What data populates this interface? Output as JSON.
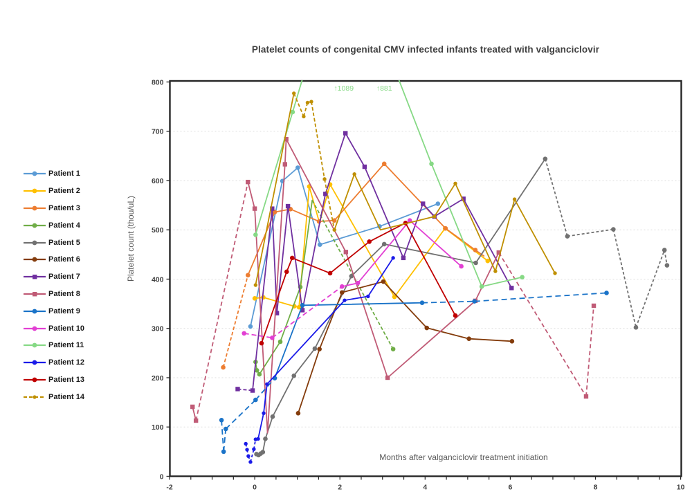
{
  "title": "Platelet counts of congenital CMV infected infants treated with valganciclovir",
  "x_axis": {
    "label": "Months after valganciclovir treatment initiation",
    "tick_labels": [
      -2,
      0,
      2,
      4,
      6,
      8,
      10
    ],
    "minor_tick_step": 0.5,
    "range": [
      -2,
      10
    ]
  },
  "y_axis": {
    "label": "Platelet count (thou/uL)",
    "tick_labels": [
      0,
      100,
      200,
      300,
      400,
      500,
      600,
      700,
      800
    ],
    "range": [
      0,
      800
    ]
  },
  "annotations": [
    {
      "text": "↑1089",
      "month": 2.09,
      "value_offscale": 1089,
      "color": "#86d985"
    },
    {
      "text": "↑881",
      "month": 3.04,
      "value_offscale": 881,
      "color": "#86d985"
    }
  ],
  "chart_data": {
    "type": "line",
    "x_unit": "months",
    "y_unit": "platelets thou/uL",
    "grid": "horizontal-dotted",
    "legend_position": "left-outside",
    "series": [
      {
        "name": "Patient 1",
        "color": "#5b9bd5",
        "marker": "circle",
        "dash": "5 3",
        "points": [
          {
            "m": -0.1,
            "v": 304
          },
          {
            "m": 0.65,
            "v": 599
          },
          {
            "m": 1.01,
            "v": 626
          },
          {
            "m": 1.53,
            "v": 470
          },
          {
            "m": 2.93,
            "v": 507
          },
          {
            "m": 4.3,
            "v": 553
          }
        ]
      },
      {
        "name": "Patient 2",
        "color": "#ffc000",
        "marker": "circle",
        "dash": "5 3",
        "points": [
          {
            "m": 0.0,
            "v": 361
          },
          {
            "m": 0.2,
            "v": 363
          },
          {
            "m": 0.93,
            "v": 345
          },
          {
            "m": 1.04,
            "v": 343
          },
          {
            "m": 1.28,
            "v": 588
          },
          {
            "m": 1.52,
            "v": 514,
            "mk": false
          },
          {
            "m": 1.77,
            "v": 592
          },
          {
            "m": 3.28,
            "v": 364
          },
          {
            "m": 4.47,
            "v": 503
          },
          {
            "m": 5.47,
            "v": 437
          }
        ]
      },
      {
        "name": "Patient 3",
        "color": "#ed7d31",
        "marker": "circle",
        "dash": "5 3",
        "points": [
          {
            "m": -0.74,
            "v": 221
          },
          {
            "m": -0.16,
            "v": 408,
            "d": true
          },
          {
            "m": 0.47,
            "v": 536
          },
          {
            "m": 0.84,
            "v": 542
          },
          {
            "m": 1.51,
            "v": 517
          },
          {
            "m": 1.87,
            "v": 519
          },
          {
            "m": 3.04,
            "v": 634
          },
          {
            "m": 4.48,
            "v": 503
          },
          {
            "m": 5.18,
            "v": 459
          },
          {
            "m": 5.38,
            "v": 447,
            "mk": false
          }
        ]
      },
      {
        "name": "Patient 4",
        "color": "#70ad47",
        "marker": "circle",
        "dash": "5 3",
        "points": [
          {
            "m": 0.02,
            "v": 232
          },
          {
            "m": 0.05,
            "v": 215
          },
          {
            "m": 0.11,
            "v": 207
          },
          {
            "m": 0.6,
            "v": 273
          },
          {
            "m": 1.07,
            "v": 384
          },
          {
            "m": 1.35,
            "v": 560,
            "mk": false
          },
          {
            "m": 3.25,
            "v": 258,
            "d": true
          }
        ]
      },
      {
        "name": "Patient 5",
        "color": "#717171",
        "marker": "circle",
        "dash": "4 3",
        "points": [
          {
            "m": 0.04,
            "v": 45
          },
          {
            "m": 0.09,
            "v": 43
          },
          {
            "m": 0.14,
            "v": 46
          },
          {
            "m": 0.19,
            "v": 49
          },
          {
            "m": 0.25,
            "v": 76
          },
          {
            "m": 0.42,
            "v": 121
          },
          {
            "m": 0.92,
            "v": 204
          },
          {
            "m": 1.41,
            "v": 259
          },
          {
            "m": 2.27,
            "v": 406
          },
          {
            "m": 3.04,
            "v": 471
          },
          {
            "m": 5.19,
            "v": 433
          },
          {
            "m": 6.82,
            "v": 644
          },
          {
            "m": 7.34,
            "v": 487,
            "d": true
          },
          {
            "m": 8.42,
            "v": 501,
            "d": true
          },
          {
            "m": 8.95,
            "v": 302,
            "d": true
          },
          {
            "m": 9.62,
            "v": 459,
            "d": true
          },
          {
            "m": 9.68,
            "v": 428,
            "d": true
          }
        ]
      },
      {
        "name": "Patient 6",
        "color": "#843c0c",
        "marker": "circle",
        "dash": "5 3",
        "points": [
          {
            "m": 1.02,
            "v": 128
          },
          {
            "m": 1.52,
            "v": 258
          },
          {
            "m": 2.05,
            "v": 373
          },
          {
            "m": 3.02,
            "v": 395
          },
          {
            "m": 4.04,
            "v": 301
          },
          {
            "m": 5.03,
            "v": 279
          },
          {
            "m": 6.04,
            "v": 274
          }
        ]
      },
      {
        "name": "Patient 7",
        "color": "#7030a0",
        "marker": "square",
        "dash": "5 3",
        "points": [
          {
            "m": -0.4,
            "v": 177
          },
          {
            "m": -0.05,
            "v": 174,
            "d": true
          },
          {
            "m": 0.41,
            "v": 543
          },
          {
            "m": 0.52,
            "v": 331
          },
          {
            "m": 0.78,
            "v": 548
          },
          {
            "m": 1.12,
            "v": 337
          },
          {
            "m": 1.66,
            "v": 573
          },
          {
            "m": 2.13,
            "v": 696
          },
          {
            "m": 2.58,
            "v": 628
          },
          {
            "m": 3.49,
            "v": 443
          },
          {
            "m": 3.95,
            "v": 553
          },
          {
            "m": 4.22,
            "v": 527
          },
          {
            "m": 4.9,
            "v": 563
          },
          {
            "m": 6.03,
            "v": 382
          }
        ]
      },
      {
        "name": "Patient 8",
        "color": "#c05b76",
        "marker": "square",
        "dash": "6 4",
        "points": [
          {
            "m": -1.46,
            "v": 141
          },
          {
            "m": -1.38,
            "v": 113
          },
          {
            "m": -0.16,
            "v": 597,
            "d": true
          },
          {
            "m": 0.0,
            "v": 543
          },
          {
            "m": 0.3,
            "v": 88,
            "mk": false
          },
          {
            "m": 0.71,
            "v": 633
          },
          {
            "m": 0.74,
            "v": 684
          },
          {
            "m": 2.14,
            "v": 455
          },
          {
            "m": 3.12,
            "v": 200
          },
          {
            "m": 5.18,
            "v": 356
          },
          {
            "m": 5.73,
            "v": 454
          },
          {
            "m": 7.78,
            "v": 162,
            "d": true
          },
          {
            "m": 7.96,
            "v": 346,
            "d": true
          }
        ]
      },
      {
        "name": "Patient 9",
        "color": "#1a73c8",
        "marker": "circle",
        "dash": "8 5",
        "points": [
          {
            "m": -0.78,
            "v": 114
          },
          {
            "m": -0.73,
            "v": 50,
            "d": true
          },
          {
            "m": -0.68,
            "v": 96,
            "d": true
          },
          {
            "m": 0.02,
            "v": 155,
            "d": true
          },
          {
            "m": 0.47,
            "v": 199,
            "d": true
          },
          {
            "m": 1.12,
            "v": 347
          },
          {
            "m": 3.93,
            "v": 352
          },
          {
            "m": 5.16,
            "v": 355,
            "d": true
          },
          {
            "m": 8.26,
            "v": 372,
            "d": true
          }
        ]
      },
      {
        "name": "Patient 10",
        "color": "#e23fd3",
        "marker": "circle",
        "dash": "7 4",
        "points": [
          {
            "m": -0.25,
            "v": 290
          },
          {
            "m": 0.41,
            "v": 281,
            "d": true
          },
          {
            "m": 2.05,
            "v": 385,
            "d": true
          },
          {
            "m": 2.42,
            "v": 392
          },
          {
            "m": 3.64,
            "v": 519
          },
          {
            "m": 4.85,
            "v": 426
          }
        ]
      },
      {
        "name": "Patient 11",
        "color": "#86d985",
        "marker": "circle",
        "dash": "5 3",
        "points": [
          {
            "m": 0.02,
            "v": 490
          },
          {
            "m": 0.89,
            "v": 739
          },
          {
            "m": 2.09,
            "v": 1089,
            "mk": false
          },
          {
            "m": 3.04,
            "v": 881,
            "mk": false
          },
          {
            "m": 4.15,
            "v": 634
          },
          {
            "m": 5.33,
            "v": 385
          },
          {
            "m": 6.28,
            "v": 404
          }
        ]
      },
      {
        "name": "Patient 12",
        "color": "#1a1ae8",
        "marker": "circle",
        "dash": "4 3",
        "points": [
          {
            "m": -0.21,
            "v": 66
          },
          {
            "m": -0.18,
            "v": 54,
            "d": true
          },
          {
            "m": -0.15,
            "v": 41,
            "d": true
          },
          {
            "m": -0.1,
            "v": 29,
            "d": true
          },
          {
            "m": -0.02,
            "v": 55,
            "d": true
          },
          {
            "m": 0.02,
            "v": 75,
            "d": true
          },
          {
            "m": 0.08,
            "v": 76,
            "d": true
          },
          {
            "m": 0.21,
            "v": 128
          },
          {
            "m": 0.29,
            "v": 187
          },
          {
            "m": 2.11,
            "v": 357
          },
          {
            "m": 2.66,
            "v": 365
          },
          {
            "m": 3.25,
            "v": 443
          }
        ]
      },
      {
        "name": "Patient 13",
        "color": "#c00000",
        "marker": "circle",
        "dash": "5 3",
        "points": [
          {
            "m": 0.16,
            "v": 270
          },
          {
            "m": 0.75,
            "v": 415
          },
          {
            "m": 0.88,
            "v": 443
          },
          {
            "m": 1.77,
            "v": 412
          },
          {
            "m": 2.69,
            "v": 476
          },
          {
            "m": 3.54,
            "v": 514
          },
          {
            "m": 4.71,
            "v": 326
          }
        ]
      },
      {
        "name": "Patient 14",
        "color": "#bf8f00",
        "marker": "circle",
        "dash": "5 3",
        "points": [
          {
            "m": 0.02,
            "v": 388
          },
          {
            "m": 0.92,
            "v": 777
          },
          {
            "m": 1.15,
            "v": 730,
            "d": true
          },
          {
            "m": 1.24,
            "v": 758,
            "d": true
          },
          {
            "m": 1.33,
            "v": 760,
            "d": true
          },
          {
            "m": 1.64,
            "v": 603,
            "d": true
          },
          {
            "m": 1.87,
            "v": 500,
            "d": true
          },
          {
            "m": 2.34,
            "v": 613
          },
          {
            "m": 2.95,
            "v": 500,
            "mk": false
          },
          {
            "m": 4.22,
            "v": 527
          },
          {
            "m": 4.71,
            "v": 594
          },
          {
            "m": 5.65,
            "v": 416
          },
          {
            "m": 6.1,
            "v": 562
          },
          {
            "m": 7.05,
            "v": 412
          }
        ]
      }
    ]
  }
}
